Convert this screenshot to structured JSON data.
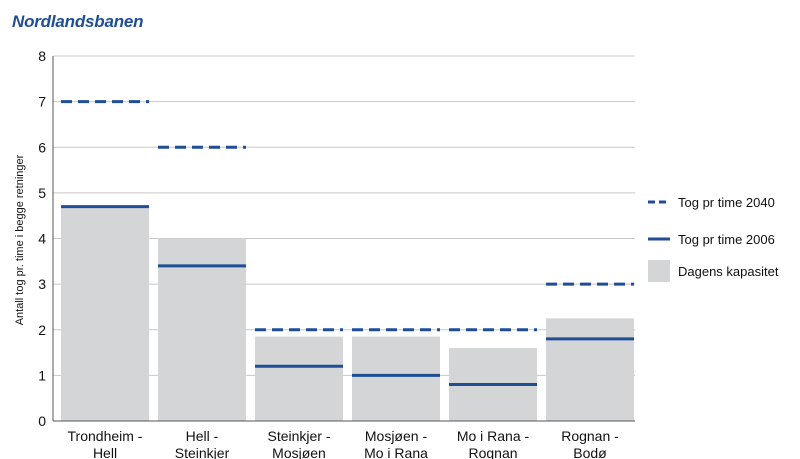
{
  "title": "Nordlandsbanen",
  "colors": {
    "line": "#1f4e96",
    "bar": "#d4d5d7",
    "grid": "#c8c8c8",
    "title": "#1f4e96"
  },
  "chart_data": {
    "type": "bar",
    "categories": [
      [
        "Trondheim -",
        "Hell"
      ],
      [
        "Hell -",
        "Steinkjer"
      ],
      [
        "Steinkjer -",
        "Mosjøen"
      ],
      [
        "Mosjøen -",
        "Mo i Rana"
      ],
      [
        "Mo i Rana -",
        "Rognan"
      ],
      [
        "Rognan -",
        "Bodø"
      ]
    ],
    "ylabel": "Antall tog pr. time i begge retninger",
    "ylim": [
      0,
      8
    ],
    "yticks": [
      0,
      1,
      2,
      3,
      4,
      5,
      6,
      7,
      8
    ],
    "grid": true,
    "legend_position": "right",
    "series": [
      {
        "name": "Tog pr time 2040",
        "style": "dashed-line",
        "values": [
          7.0,
          6.0,
          2.0,
          2.0,
          2.0,
          3.0
        ]
      },
      {
        "name": "Tog pr time 2006",
        "style": "solid-line",
        "values": [
          4.7,
          3.4,
          1.2,
          1.0,
          0.8,
          1.8
        ]
      },
      {
        "name": "Dagens kapasitet",
        "style": "bar",
        "values": [
          4.7,
          4.0,
          1.85,
          1.85,
          1.6,
          2.25
        ]
      }
    ]
  }
}
